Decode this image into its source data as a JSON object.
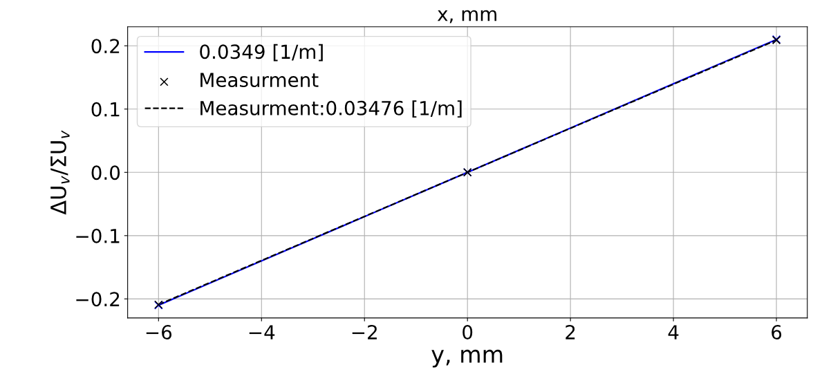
{
  "chart_data": {
    "type": "scatter",
    "xlabel": "y, mm",
    "ylabel": "ΔU$_{v}$/ΣU$_{v}$",
    "annotations": [
      "x, mm"
    ],
    "xlim": [
      -6.6,
      6.6
    ],
    "ylim": [
      -0.23,
      0.23
    ],
    "xticks": [
      {
        "value": -6,
        "label": "−6"
      },
      {
        "value": -4,
        "label": "−4"
      },
      {
        "value": -2,
        "label": "−2"
      },
      0,
      2,
      4,
      6
    ],
    "yticks": [
      {
        "value": -0.2,
        "label": "−0.2"
      },
      {
        "value": -0.1,
        "label": "−0.1"
      },
      {
        "value": 0,
        "label": "0.0"
      },
      0.1,
      0.2
    ],
    "grid": true,
    "legend": "top left",
    "series": [
      {
        "color": "#0000ff",
        "marker": "cross",
        "x": [
          -6,
          0,
          6
        ],
        "values": [
          -0.21,
          0.0,
          0.21
        ]
      },
      {
        "type": "line",
        "name": "0.0349 [1/m]",
        "color": "#0000ff",
        "line_style": "solid",
        "x": [
          -6,
          6
        ],
        "values": [
          -0.21,
          0.21
        ]
      },
      {
        "name": "Measurment",
        "color": "#000000",
        "marker": "cross",
        "x": [
          -6,
          0,
          6
        ],
        "values": [
          -0.209,
          0.0,
          0.209
        ]
      },
      {
        "type": "line",
        "name": "Measurment:0.03476 [1/m]",
        "color": "#000000",
        "line_style": "dashed",
        "x": [
          -6,
          6
        ],
        "values": [
          -0.209,
          0.209
        ]
      }
    ]
  }
}
